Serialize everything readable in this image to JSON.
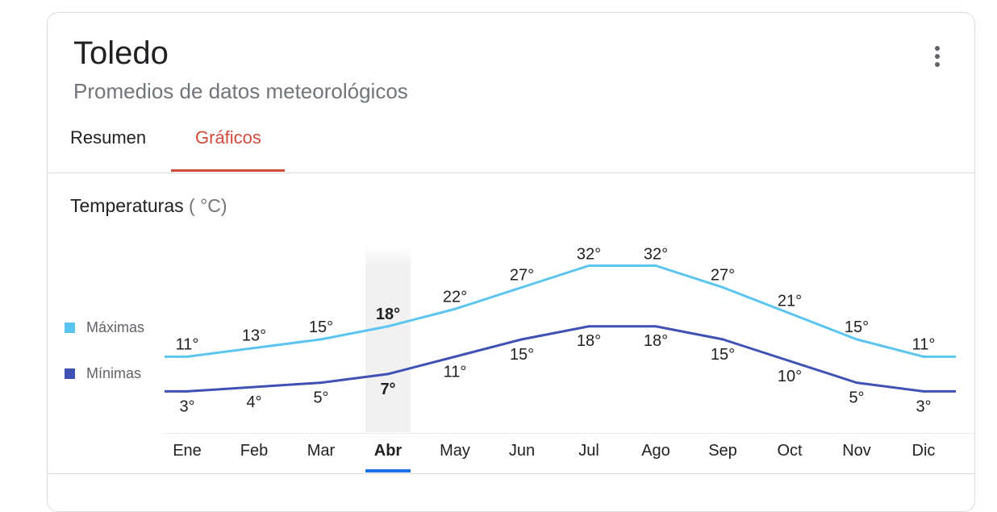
{
  "header": {
    "title": "Toledo",
    "subtitle": "Promedios de datos meteorológicos",
    "more_icon": "more-vert-icon"
  },
  "tabs": [
    {
      "label": "Resumen",
      "selected": false
    },
    {
      "label": "Gráficos",
      "selected": true
    }
  ],
  "section": {
    "title": "Temperaturas",
    "unit": "( °C)"
  },
  "colors": {
    "accent_tab": "#d04a3c",
    "series_max": "#5bc5f0",
    "series_min": "#3f51b5",
    "selected_month_bar": "#1a73e8"
  },
  "chart_data": {
    "type": "line",
    "categories": [
      "Ene",
      "Feb",
      "Mar",
      "Abr",
      "May",
      "Jun",
      "Jul",
      "Ago",
      "Sep",
      "Oct",
      "Nov",
      "Dic"
    ],
    "selected_category": "Abr",
    "series": [
      {
        "name": "Máximas",
        "values": [
          11,
          13,
          15,
          18,
          22,
          27,
          32,
          32,
          27,
          21,
          15,
          11
        ],
        "labels": [
          "11°",
          "13°",
          "15°",
          "18°",
          "22°",
          "27°",
          "32°",
          "32°",
          "27°",
          "21°",
          "15°",
          "11°"
        ]
      },
      {
        "name": "Mínimas",
        "values": [
          3,
          4,
          5,
          7,
          11,
          15,
          18,
          18,
          15,
          10,
          5,
          3
        ],
        "labels": [
          "3°",
          "4°",
          "5°",
          "7°",
          "11°",
          "15°",
          "18°",
          "18°",
          "15°",
          "10°",
          "5°",
          "3°"
        ]
      }
    ],
    "legend_placement": "left",
    "grid": false
  }
}
